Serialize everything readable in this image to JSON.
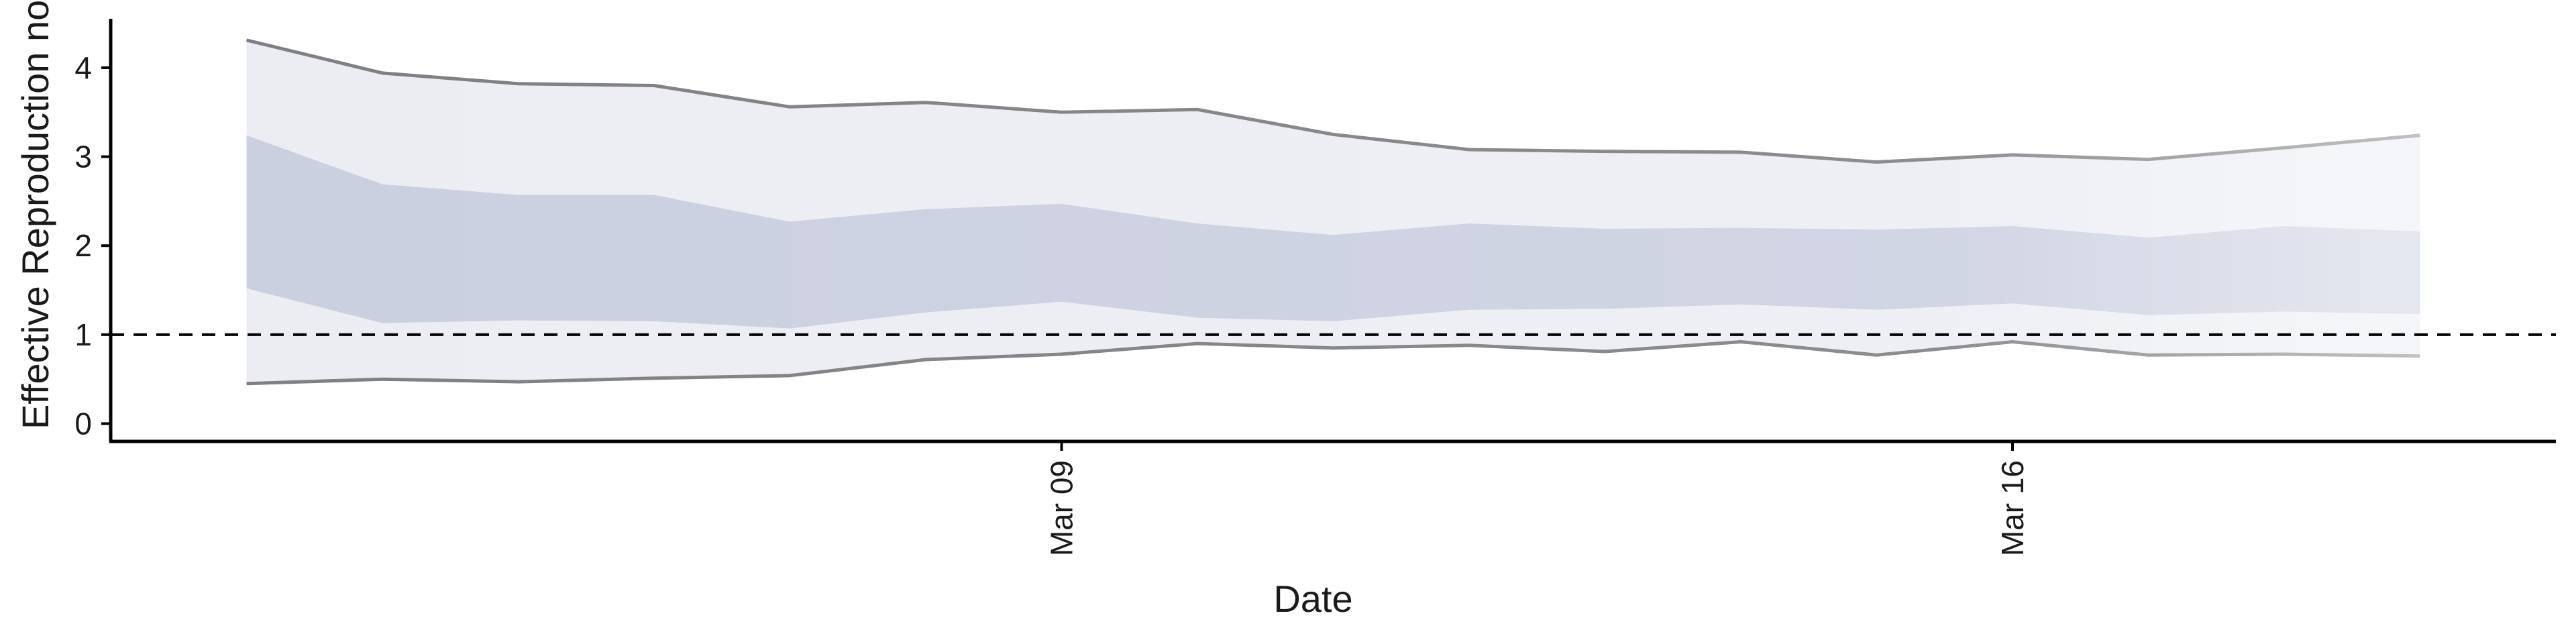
{
  "chart_data": {
    "type": "area",
    "title": "",
    "xlabel": "Date",
    "ylabel": "Effective Reproduction no.",
    "x": [
      "2020-03-03",
      "2020-03-04",
      "2020-03-05",
      "2020-03-06",
      "2020-03-07",
      "2020-03-08",
      "2020-03-09",
      "2020-03-10",
      "2020-03-11",
      "2020-03-12",
      "2020-03-13",
      "2020-03-14",
      "2020-03-15",
      "2020-03-16",
      "2020-03-17",
      "2020-03-18",
      "2020-03-19"
    ],
    "x_ticks": [
      {
        "date": "2020-03-09",
        "label": "Mar 09"
      },
      {
        "date": "2020-03-16",
        "label": "Mar 16"
      }
    ],
    "xlim": [
      "2020-03-02",
      "2020-03-20"
    ],
    "y_ticks": [
      0,
      1,
      2,
      3,
      4
    ],
    "ylim": [
      -0.2,
      4.55
    ],
    "reference_line": 1,
    "series": [
      {
        "upper": [
          4.31,
          3.94,
          3.82,
          3.8,
          3.56,
          3.61,
          3.5,
          3.53,
          3.25,
          3.08,
          3.06,
          3.05,
          2.94,
          3.02,
          2.97,
          3.1,
          3.24
        ]
      },
      {
        "upper": [
          3.24,
          2.69,
          2.57,
          2.57,
          2.27,
          2.41,
          2.47,
          2.25,
          2.12,
          2.25,
          2.19,
          2.2,
          2.18,
          2.22,
          2.09,
          2.22,
          2.16
        ]
      },
      {
        "lower": [
          1.52,
          1.13,
          1.16,
          1.15,
          1.07,
          1.25,
          1.37,
          1.19,
          1.15,
          1.28,
          1.29,
          1.34,
          1.28,
          1.35,
          1.22,
          1.26,
          1.23
        ]
      },
      {
        "lower": [
          0.45,
          0.5,
          0.47,
          0.51,
          0.54,
          0.72,
          0.78,
          0.9,
          0.85,
          0.88,
          0.81,
          0.92,
          0.77,
          0.92,
          0.77,
          0.78,
          0.76
        ]
      }
    ],
    "colors": {
      "outer_band": "#ebedf3",
      "inner_band": "#cacfe0",
      "bound_line": "#7d7d80",
      "reference": "#000000",
      "axis": "#000000"
    },
    "grid": false
  }
}
